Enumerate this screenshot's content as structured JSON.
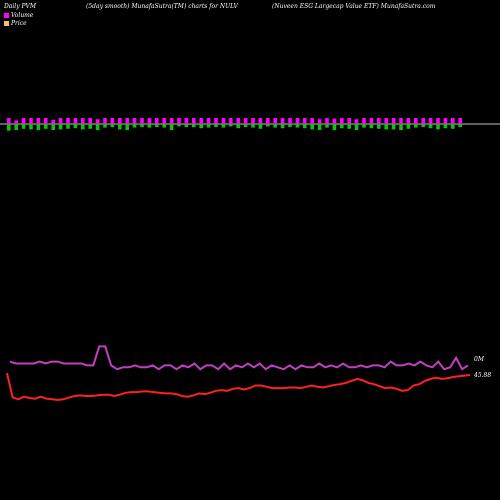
{
  "header": {
    "left": "Daily PVM",
    "mid": "(5day smooth) MunafaSutra(TM) charts for NULV",
    "right": "(Nuveen ESG Largecap Value   ETF) MunafaSutra.com"
  },
  "legend": [
    {
      "label": "Volume",
      "color": "#ff00ff"
    },
    {
      "label": "Price",
      "color": "#ffbb77"
    }
  ],
  "colors": {
    "volume_up": "#ff00ff",
    "volume_down": "#00cc00",
    "price_line": "#ff2020",
    "volume_line": "#c040c0"
  },
  "chart_data": {
    "type": "line",
    "volume_axis_label": "0M",
    "price_axis_label": "45.88",
    "bars": [
      [
        1,
        -1.1
      ],
      [
        -1,
        0.6
      ],
      [
        1,
        -0.8
      ],
      [
        1,
        -0.9
      ],
      [
        1,
        -1.0
      ],
      [
        1,
        -0.8
      ],
      [
        -1,
        0.7
      ],
      [
        1,
        -0.9
      ],
      [
        1,
        -0.8
      ],
      [
        1,
        -0.7
      ],
      [
        1,
        -0.9
      ],
      [
        1,
        -0.8
      ],
      [
        -1,
        0.8
      ],
      [
        1,
        -0.6
      ],
      [
        1,
        -0.5
      ],
      [
        1,
        -0.9
      ],
      [
        1,
        -1.0
      ],
      [
        1,
        -0.6
      ],
      [
        1,
        -0.5
      ],
      [
        1,
        -0.6
      ],
      [
        1,
        -0.5
      ],
      [
        1,
        -0.6
      ],
      [
        -1,
        1.0
      ],
      [
        1,
        -0.4
      ],
      [
        1,
        -0.5
      ],
      [
        1,
        -0.5
      ],
      [
        1,
        -0.7
      ],
      [
        1,
        -0.6
      ],
      [
        1,
        -0.5
      ],
      [
        1,
        -0.6
      ],
      [
        1,
        -0.4
      ],
      [
        1,
        -0.7
      ],
      [
        1,
        -0.5
      ],
      [
        1,
        -0.6
      ],
      [
        1,
        -0.8
      ],
      [
        1,
        -0.4
      ],
      [
        1,
        -0.6
      ],
      [
        1,
        -0.7
      ],
      [
        1,
        -0.5
      ],
      [
        1,
        -0.6
      ],
      [
        1,
        -0.7
      ],
      [
        1,
        -0.9
      ],
      [
        -1,
        0.8
      ],
      [
        1,
        -0.6
      ],
      [
        -1,
        0.9
      ],
      [
        1,
        -0.7
      ],
      [
        1,
        -0.8
      ],
      [
        -1,
        0.8
      ],
      [
        1,
        -0.6
      ],
      [
        1,
        -0.7
      ],
      [
        1,
        -0.8
      ],
      [
        1,
        -0.9
      ],
      [
        1,
        -0.9
      ],
      [
        -1,
        1.0
      ],
      [
        1,
        -0.8
      ],
      [
        1,
        -0.6
      ],
      [
        1,
        -0.5
      ],
      [
        1,
        -0.7
      ],
      [
        1,
        -0.9
      ],
      [
        1,
        -0.7
      ],
      [
        1,
        -0.8
      ],
      [
        1,
        -0.5
      ]
    ],
    "volume_line": [
      6,
      5,
      5,
      5,
      5,
      6,
      5,
      6,
      6,
      5,
      5,
      5,
      5,
      4,
      4,
      14,
      14,
      4,
      2,
      3,
      3,
      4,
      3,
      3,
      4,
      2,
      4,
      4,
      2,
      4,
      3,
      5,
      2,
      4,
      4,
      2,
      5,
      2,
      4,
      3,
      5,
      3,
      5,
      2,
      4,
      3,
      2,
      4,
      2,
      4,
      3,
      3,
      5,
      3,
      4,
      3,
      5,
      3,
      3,
      4,
      3,
      4,
      4,
      3,
      6,
      4,
      4,
      5,
      4,
      6,
      4,
      3,
      6,
      2,
      3,
      8,
      2,
      4
    ],
    "price_line": [
      45.5,
      41.8,
      41.5,
      41.9,
      41.7,
      41.6,
      41.9,
      41.6,
      41.5,
      41.4,
      41.5,
      41.8,
      42.0,
      42.1,
      42.0,
      42.0,
      42.1,
      42.2,
      42.2,
      42.0,
      42.2,
      42.5,
      42.6,
      42.6,
      42.7,
      42.7,
      42.6,
      42.5,
      42.4,
      42.4,
      42.3,
      42.0,
      41.9,
      42.1,
      42.4,
      42.3,
      42.5,
      42.8,
      42.9,
      42.8,
      43.1,
      43.2,
      43.0,
      43.2,
      43.6,
      43.6,
      43.4,
      43.2,
      43.2,
      43.2,
      43.3,
      43.3,
      43.2,
      43.4,
      43.6,
      43.4,
      43.3,
      43.5,
      43.7,
      43.8,
      44.0,
      44.3,
      44.6,
      44.4,
      44.0,
      43.8,
      43.5,
      43.2,
      43.3,
      43.1,
      42.8,
      42.9,
      43.6,
      43.8,
      44.3,
      44.6,
      44.8,
      44.6,
      44.7,
      44.9,
      45.0,
      45.1,
      45.2
    ]
  }
}
